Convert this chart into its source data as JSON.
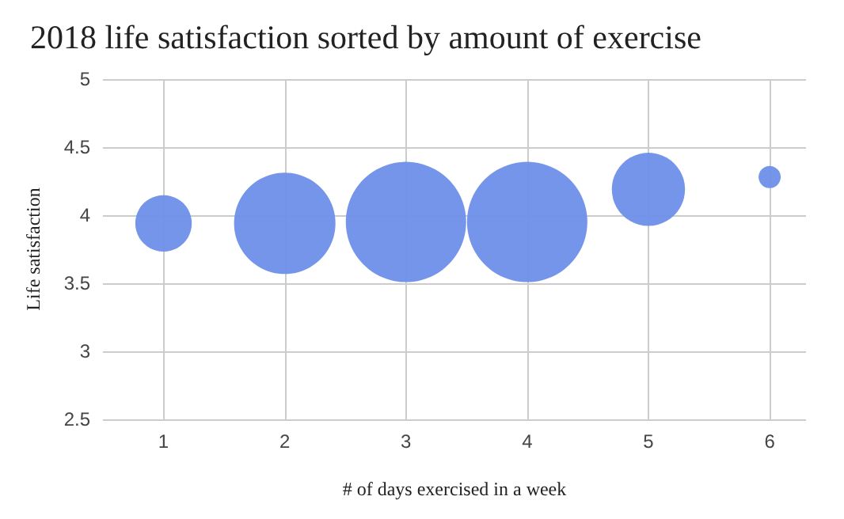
{
  "chart_data": {
    "type": "bubble",
    "title": "2018 life satisfaction sorted by amount of exercise",
    "xlabel": "# of days exercised in a week",
    "ylabel": "Life satisfaction",
    "x": [
      1,
      2,
      3,
      4,
      5,
      6
    ],
    "values": [
      3.94,
      3.94,
      3.95,
      3.95,
      4.19,
      4.28
    ],
    "sizes": [
      0.22,
      0.71,
      1,
      1,
      0.37,
      0.034
    ],
    "color": "#6d8fe8",
    "xlim": [
      0.5,
      6.3
    ],
    "xticks": [
      1,
      2,
      3,
      4,
      5,
      6
    ],
    "ylim": [
      2.5,
      5
    ],
    "yticks": [
      2.5,
      3,
      3.5,
      4,
      4.5,
      5
    ],
    "grid": true
  }
}
